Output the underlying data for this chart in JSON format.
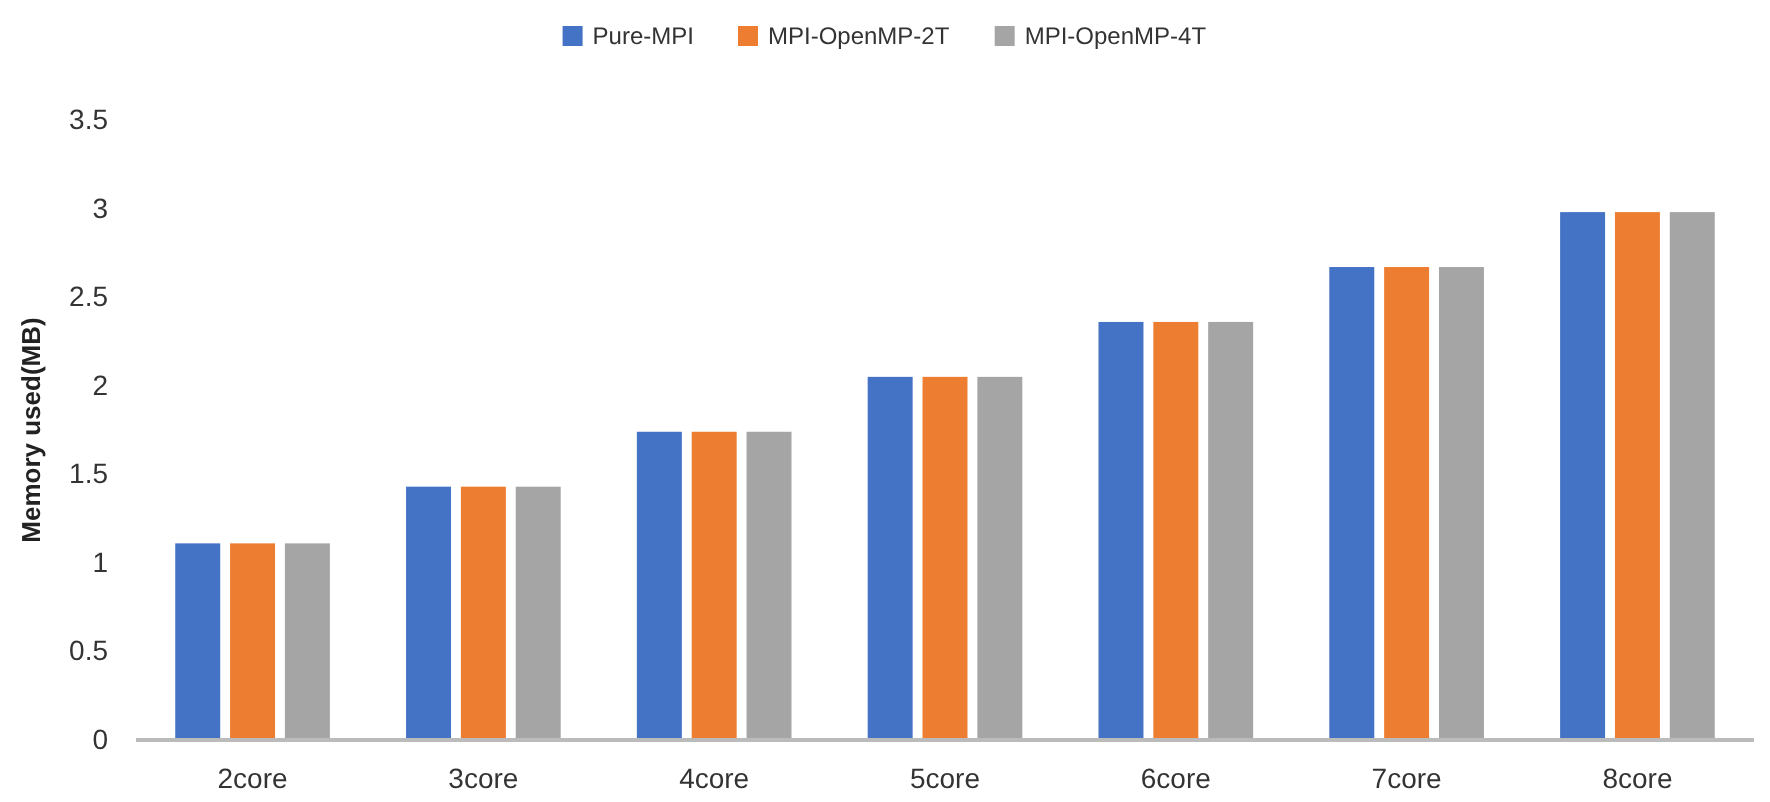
{
  "chart_data": {
    "type": "bar",
    "ylabel": "Memory used(MB)",
    "categories": [
      "2core",
      "3core",
      "4core",
      "5core",
      "6core",
      "7core",
      "8core"
    ],
    "series": [
      {
        "name": "Pure-MPI",
        "color": "#4472c4",
        "values": [
          1.11,
          1.43,
          1.74,
          2.05,
          2.36,
          2.67,
          2.98
        ]
      },
      {
        "name": "MPI-OpenMP-2T",
        "color": "#ed7d31",
        "values": [
          1.11,
          1.43,
          1.74,
          2.05,
          2.36,
          2.67,
          2.98
        ]
      },
      {
        "name": "MPI-OpenMP-4T",
        "color": "#a5a5a5",
        "values": [
          1.11,
          1.43,
          1.74,
          2.05,
          2.36,
          2.67,
          2.98
        ]
      }
    ],
    "ylim": [
      0,
      3.5
    ],
    "yticks": [
      0,
      0.5,
      1,
      1.5,
      2,
      2.5,
      3,
      3.5
    ],
    "grid": false,
    "legend": "top"
  }
}
